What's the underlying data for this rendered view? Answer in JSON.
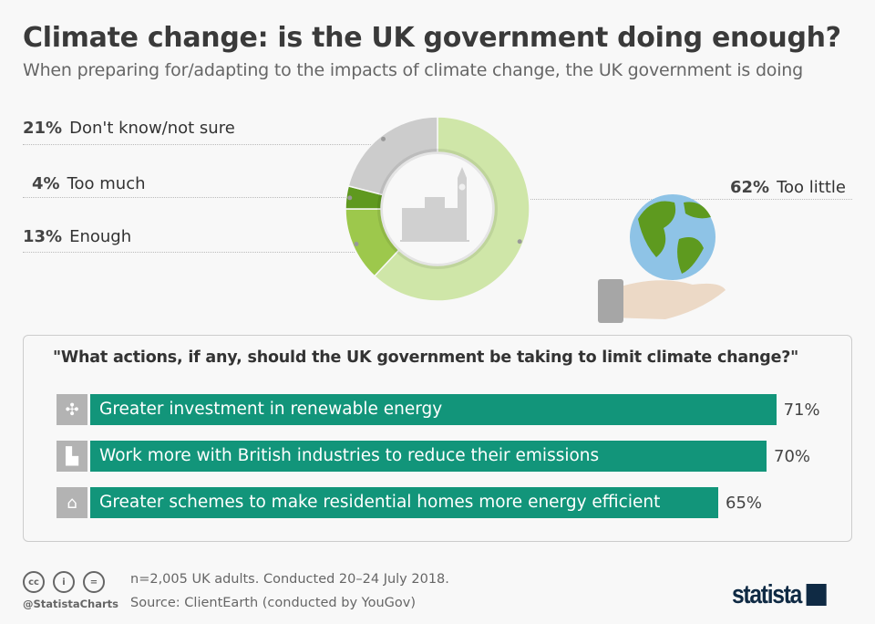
{
  "header": {
    "title": "Climate change: is the UK government doing enough?",
    "subtitle": "When preparing for/adapting to the impacts of climate change, the UK government is doing"
  },
  "chart_data": [
    {
      "type": "pie",
      "subtype": "donut",
      "slices": [
        {
          "label": "Too little",
          "value": 62,
          "value_label": "62%",
          "color": "#cfe6a8"
        },
        {
          "label": "Enough",
          "value": 13,
          "value_label": "13%",
          "color": "#9dc84c"
        },
        {
          "label": "Too much",
          "value": 4,
          "value_label": "4%",
          "color": "#5f991f"
        },
        {
          "label": "Don't know/not sure",
          "value": 21,
          "value_label": "21%",
          "color": "#cccccc"
        }
      ]
    },
    {
      "type": "bar",
      "orientation": "horizontal",
      "title": "\"What actions, if any, should the UK government be taking to limit climate change?\"",
      "categories": [
        "Greater investment in renewable energy",
        "Work more with British industries to reduce their emissions",
        "Greater schemes to make residential homes more energy efficient"
      ],
      "values": [
        71,
        70,
        65
      ],
      "value_labels": [
        "71%",
        "70%",
        "65%"
      ],
      "icons": [
        "wind-turbine-icon",
        "factory-icon",
        "house-icon"
      ],
      "color": "#12957a"
    }
  ],
  "footer": {
    "note": "n=2,005 UK adults. Conducted 20–24 July 2018.",
    "source": "Source: ClientEarth (conducted by YouGov)",
    "handle": "@StatistaCharts",
    "logo": "statista",
    "cc": [
      "cc",
      "i",
      "="
    ]
  }
}
